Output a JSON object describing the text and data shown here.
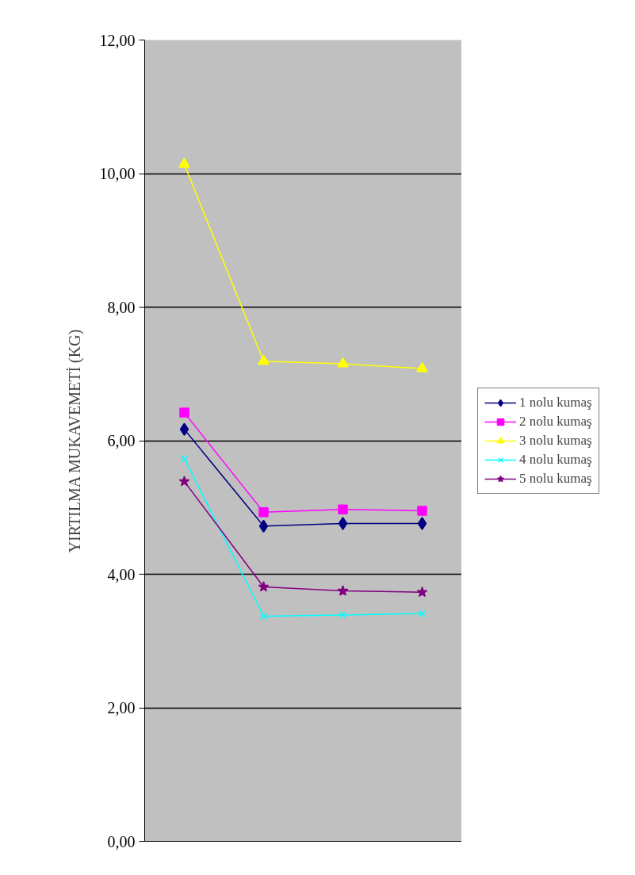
{
  "chart_data": {
    "type": "line",
    "ylabel": "YIRTILMA MUKAVEMETİ (KG)",
    "categories": [
      null,
      null,
      null,
      null
    ],
    "ylim": [
      0,
      12
    ],
    "yticks": [
      {
        "value": 0,
        "label": "0,00"
      },
      {
        "value": 2,
        "label": "2,00"
      },
      {
        "value": 4,
        "label": "4,00"
      },
      {
        "value": 6,
        "label": "6,00"
      },
      {
        "value": 8,
        "label": "8,00"
      },
      {
        "value": 10,
        "label": "10,00"
      },
      {
        "value": 12,
        "label": "12,00"
      }
    ],
    "grid": "y",
    "legend": "right",
    "tick_labels": "y",
    "series": [
      {
        "name": "1 nolu kumaş",
        "color": "#000080",
        "marker": "diamond",
        "values": [
          6.17,
          4.72,
          4.76,
          4.76
        ]
      },
      {
        "name": "2 nolu kumaş",
        "color": "#ff00ff",
        "marker": "square",
        "values": [
          6.42,
          4.93,
          4.97,
          4.95
        ]
      },
      {
        "name": "3 nolu kumaş",
        "color": "#ffff00",
        "marker": "triangle",
        "values": [
          10.14,
          7.19,
          7.15,
          7.08
        ]
      },
      {
        "name": "4 nolu kumaş",
        "color": "#00ffff",
        "marker": "cross",
        "values": [
          5.73,
          3.37,
          3.39,
          3.41
        ]
      },
      {
        "name": "5 nolu kumaş",
        "color": "#800080",
        "marker": "star",
        "values": [
          5.39,
          3.81,
          3.75,
          3.73
        ]
      }
    ]
  }
}
